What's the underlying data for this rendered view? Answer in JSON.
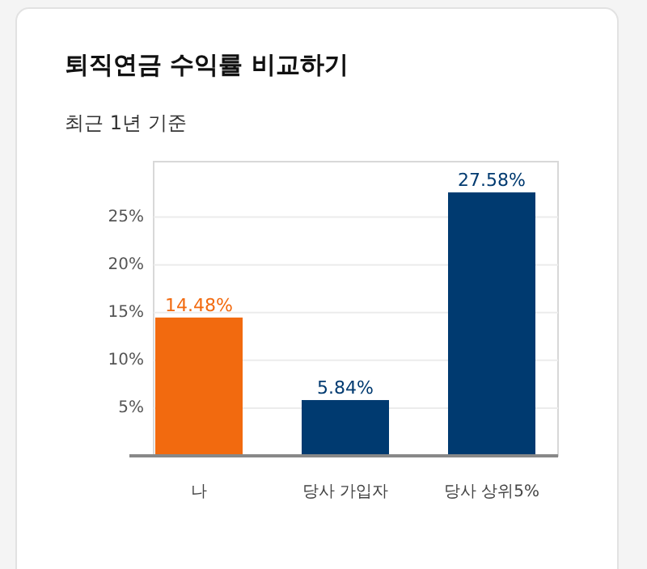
{
  "chart_data": {
    "type": "bar",
    "title": "퇴직연금 수익률 비교하기",
    "subtitle": "최근 1년 기준",
    "categories": [
      "나",
      "당사 가입자",
      "당사 상위5%"
    ],
    "values": [
      14.48,
      5.84,
      27.58
    ],
    "colors": [
      "#f26a0f",
      "#003a70",
      "#003a70"
    ],
    "value_labels": [
      "14.48%",
      "5.84%",
      "27.58%"
    ],
    "ylim": [
      0,
      30.8
    ],
    "yticks": [
      {
        "value": 5,
        "label": "5%"
      },
      {
        "value": 10,
        "label": "10%"
      },
      {
        "value": 15,
        "label": "15%"
      },
      {
        "value": 20,
        "label": "20%"
      },
      {
        "value": 25,
        "label": "25%"
      }
    ],
    "grid": "y"
  }
}
